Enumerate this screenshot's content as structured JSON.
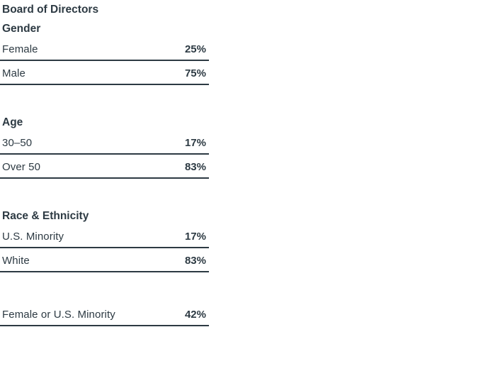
{
  "colors": {
    "text": "#2d3a43",
    "rule": "#2d3a43",
    "background": "#ffffff"
  },
  "chart_data": {
    "type": "table",
    "title": "Board of Directors",
    "columns": [
      "category",
      "percent"
    ],
    "sections": [
      {
        "label": "Gender",
        "rows": [
          {
            "label": "Female",
            "value": "25%",
            "value_num": 25
          },
          {
            "label": "Male",
            "value": "75%",
            "value_num": 75
          }
        ]
      },
      {
        "label": "Age",
        "rows": [
          {
            "label": "30–50",
            "value": "17%",
            "value_num": 17
          },
          {
            "label": "Over 50",
            "value": "83%",
            "value_num": 83
          }
        ]
      },
      {
        "label": "Race & Ethnicity",
        "rows": [
          {
            "label": "U.S. Minority",
            "value": "17%",
            "value_num": 17
          },
          {
            "label": "White",
            "value": "83%",
            "value_num": 83
          }
        ]
      },
      {
        "label": "",
        "rows": [
          {
            "label": "Female or U.S. Minority",
            "value": "42%",
            "value_num": 42
          }
        ]
      }
    ]
  }
}
